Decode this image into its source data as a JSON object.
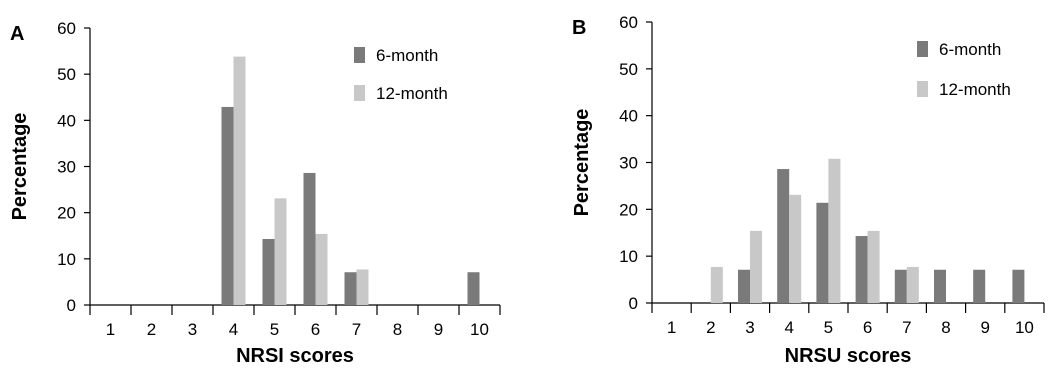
{
  "colors": {
    "six_month": "#7a7a7a",
    "twelve_month": "#c8c8c8"
  },
  "chart_data": [
    {
      "panel": "A",
      "type": "bar",
      "title": "",
      "xlabel": "NRSI scores",
      "ylabel": "Percentage",
      "ylim": [
        0,
        60
      ],
      "yticks": [
        0,
        10,
        20,
        30,
        40,
        50,
        60
      ],
      "categories": [
        "1",
        "2",
        "3",
        "4",
        "5",
        "6",
        "7",
        "8",
        "9",
        "10"
      ],
      "series": [
        {
          "name": "6-month",
          "values": [
            0,
            0,
            0,
            42.9,
            14.3,
            28.6,
            7.1,
            0,
            0,
            7.1
          ]
        },
        {
          "name": "12-month",
          "values": [
            0,
            0,
            0,
            53.8,
            23.1,
            15.4,
            7.7,
            0,
            0,
            0
          ]
        }
      ],
      "legend": "top-right",
      "grid": false
    },
    {
      "panel": "B",
      "type": "bar",
      "title": "",
      "xlabel": "NRSU scores",
      "ylabel": "Percentage",
      "ylim": [
        0,
        60
      ],
      "yticks": [
        0,
        10,
        20,
        30,
        40,
        50,
        60
      ],
      "categories": [
        "1",
        "2",
        "3",
        "4",
        "5",
        "6",
        "7",
        "8",
        "9",
        "10"
      ],
      "series": [
        {
          "name": "6-month",
          "values": [
            0,
            0,
            7.1,
            28.6,
            21.4,
            14.3,
            7.1,
            7.1,
            7.1,
            7.1
          ]
        },
        {
          "name": "12-month",
          "values": [
            0,
            7.7,
            15.4,
            23.1,
            30.8,
            15.4,
            7.7,
            0,
            0,
            0
          ]
        }
      ],
      "legend": "top-right",
      "grid": false
    }
  ]
}
